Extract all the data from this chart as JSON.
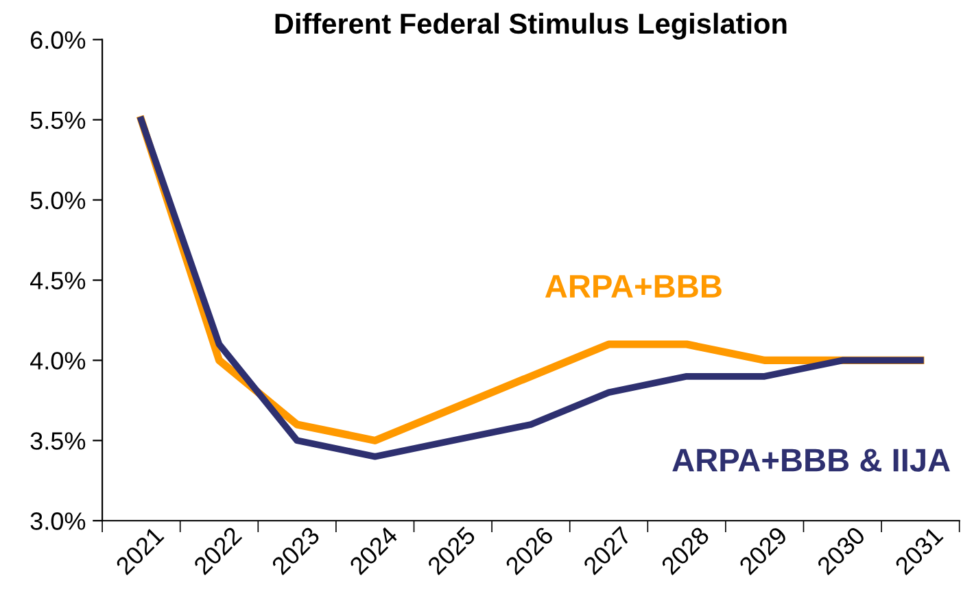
{
  "chart_data": {
    "type": "line",
    "title": "Different Federal Stimulus Legislation",
    "categories": [
      "2021",
      "2022",
      "2023",
      "2024",
      "2025",
      "2026",
      "2027",
      "2028",
      "2029",
      "2030",
      "2031"
    ],
    "series": [
      {
        "name": "ARPA+BBB",
        "color": "#ff9900",
        "values": [
          5.5,
          4.0,
          3.6,
          3.5,
          3.7,
          3.9,
          4.1,
          4.1,
          4.0,
          4.0,
          4.0
        ]
      },
      {
        "name": "ARPA+BBB & IIJA",
        "color": "#2e3070",
        "values": [
          5.5,
          4.1,
          3.5,
          3.4,
          3.5,
          3.6,
          3.8,
          3.9,
          3.9,
          4.0,
          4.0
        ]
      }
    ],
    "ylim": [
      3.0,
      6.0
    ],
    "yticks": [
      {
        "value": 3.0,
        "label": "3.0%"
      },
      {
        "value": 3.5,
        "label": "3.5%"
      },
      {
        "value": 4.0,
        "label": "4.0%"
      },
      {
        "value": 4.5,
        "label": "4.5%"
      },
      {
        "value": 5.0,
        "label": "5.0%"
      },
      {
        "value": 5.5,
        "label": "5.5%"
      },
      {
        "value": 6.0,
        "label": "6.0%"
      }
    ],
    "grid": false,
    "legend": false,
    "marker": "none",
    "line_style": "solid"
  }
}
